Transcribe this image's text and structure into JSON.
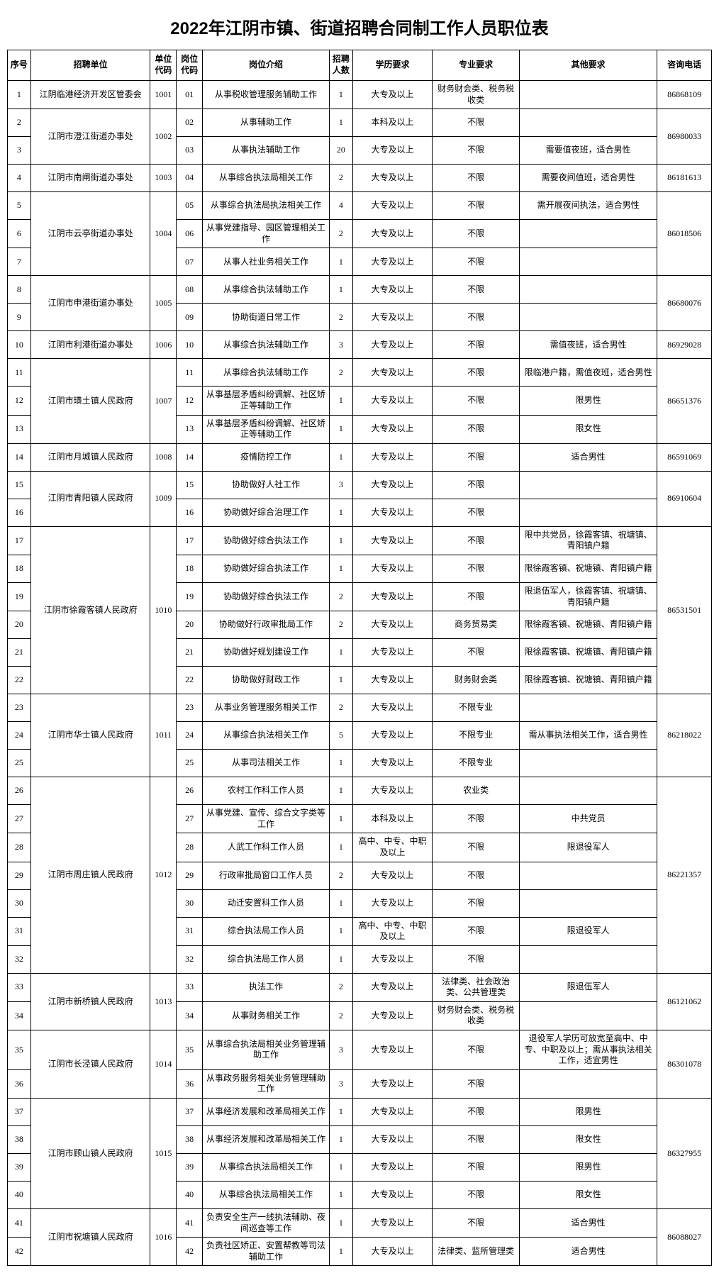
{
  "title": "2022年江阴市镇、街道招聘合同制工作人员职位表",
  "headers": [
    "序号",
    "招聘单位",
    "单位代码",
    "岗位代码",
    "岗位介绍",
    "招聘人数",
    "学历要求",
    "专业要求",
    "其他要求",
    "咨询电话"
  ],
  "units": [
    {
      "name": "江阴临港经济开发区管委会",
      "code": "1001",
      "phone": "86868109",
      "rows": [
        {
          "seq": "1",
          "pcode": "01",
          "desc": "从事税收管理服务辅助工作",
          "num": "1",
          "edu": "大专及以上",
          "major": "财务财会类、税务税收类",
          "other": ""
        }
      ]
    },
    {
      "name": "江阴市澄江街道办事处",
      "code": "1002",
      "phone": "86980033",
      "rows": [
        {
          "seq": "2",
          "pcode": "02",
          "desc": "从事辅助工作",
          "num": "1",
          "edu": "本科及以上",
          "major": "不限",
          "other": ""
        },
        {
          "seq": "3",
          "pcode": "03",
          "desc": "从事执法辅助工作",
          "num": "20",
          "edu": "大专及以上",
          "major": "不限",
          "other": "需要值夜班，适合男性"
        }
      ]
    },
    {
      "name": "江阴市南闸街道办事处",
      "code": "1003",
      "phone": "86181613",
      "rows": [
        {
          "seq": "4",
          "pcode": "04",
          "desc": "从事综合执法局相关工作",
          "num": "2",
          "edu": "大专及以上",
          "major": "不限",
          "other": "需要夜间值班，适合男性"
        }
      ]
    },
    {
      "name": "江阴市云亭街道办事处",
      "code": "1004",
      "phone": "86018506",
      "rows": [
        {
          "seq": "5",
          "pcode": "05",
          "desc": "从事综合执法局执法相关工作",
          "num": "4",
          "edu": "大专及以上",
          "major": "不限",
          "other": "需开展夜间执法，适合男性"
        },
        {
          "seq": "6",
          "pcode": "06",
          "desc": "从事党建指导、园区管理相关工作",
          "num": "2",
          "edu": "大专及以上",
          "major": "不限",
          "other": ""
        },
        {
          "seq": "7",
          "pcode": "07",
          "desc": "从事人社业务相关工作",
          "num": "1",
          "edu": "大专及以上",
          "major": "不限",
          "other": ""
        }
      ]
    },
    {
      "name": "江阴市申港街道办事处",
      "code": "1005",
      "phone": "86680076",
      "rows": [
        {
          "seq": "8",
          "pcode": "08",
          "desc": "从事综合执法辅助工作",
          "num": "1",
          "edu": "大专及以上",
          "major": "不限",
          "other": ""
        },
        {
          "seq": "9",
          "pcode": "09",
          "desc": "协助街道日常工作",
          "num": "2",
          "edu": "大专及以上",
          "major": "不限",
          "other": ""
        }
      ]
    },
    {
      "name": "江阴市利港街道办事处",
      "code": "1006",
      "phone": "86929028",
      "rows": [
        {
          "seq": "10",
          "pcode": "10",
          "desc": "从事综合执法辅助工作",
          "num": "3",
          "edu": "大专及以上",
          "major": "不限",
          "other": "需值夜班，适合男性"
        }
      ]
    },
    {
      "name": "江阴市璜土镇人民政府",
      "code": "1007",
      "phone": "86651376",
      "rows": [
        {
          "seq": "11",
          "pcode": "11",
          "desc": "从事综合执法辅助工作",
          "num": "2",
          "edu": "大专及以上",
          "major": "不限",
          "other": "限临港户籍，需值夜班，适合男性"
        },
        {
          "seq": "12",
          "pcode": "12",
          "desc": "从事基层矛盾纠纷调解、社区矫正等辅助工作",
          "num": "1",
          "edu": "大专及以上",
          "major": "不限",
          "other": "限男性"
        },
        {
          "seq": "13",
          "pcode": "13",
          "desc": "从事基层矛盾纠纷调解、社区矫正等辅助工作",
          "num": "1",
          "edu": "大专及以上",
          "major": "不限",
          "other": "限女性"
        }
      ]
    },
    {
      "name": "江阴市月城镇人民政府",
      "code": "1008",
      "phone": "86591069",
      "rows": [
        {
          "seq": "14",
          "pcode": "14",
          "desc": "疫情防控工作",
          "num": "1",
          "edu": "大专及以上",
          "major": "不限",
          "other": "适合男性"
        }
      ]
    },
    {
      "name": "江阴市青阳镇人民政府",
      "code": "1009",
      "phone": "86910604",
      "rows": [
        {
          "seq": "15",
          "pcode": "15",
          "desc": "协助做好人社工作",
          "num": "3",
          "edu": "大专及以上",
          "major": "不限",
          "other": ""
        },
        {
          "seq": "16",
          "pcode": "16",
          "desc": "协助做好综合治理工作",
          "num": "1",
          "edu": "大专及以上",
          "major": "不限",
          "other": ""
        }
      ]
    },
    {
      "name": "江阴市徐霞客镇人民政府",
      "code": "1010",
      "phone": "86531501",
      "rows": [
        {
          "seq": "17",
          "pcode": "17",
          "desc": "协助做好综合执法工作",
          "num": "1",
          "edu": "大专及以上",
          "major": "不限",
          "other": "限中共党员，徐霞客镇、祝塘镇、青阳镇户籍"
        },
        {
          "seq": "18",
          "pcode": "18",
          "desc": "协助做好综合执法工作",
          "num": "1",
          "edu": "大专及以上",
          "major": "不限",
          "other": "限徐霞客镇、祝塘镇、青阳镇户籍"
        },
        {
          "seq": "19",
          "pcode": "19",
          "desc": "协助做好综合执法工作",
          "num": "2",
          "edu": "大专及以上",
          "major": "不限",
          "other": "限退伍军人，徐霞客镇、祝塘镇、青阳镇户籍"
        },
        {
          "seq": "20",
          "pcode": "20",
          "desc": "协助做好行政审批局工作",
          "num": "2",
          "edu": "大专及以上",
          "major": "商务贸易类",
          "other": "限徐霞客镇、祝塘镇、青阳镇户籍"
        },
        {
          "seq": "21",
          "pcode": "21",
          "desc": "协助做好规划建设工作",
          "num": "1",
          "edu": "大专及以上",
          "major": "不限",
          "other": "限徐霞客镇、祝塘镇、青阳镇户籍"
        },
        {
          "seq": "22",
          "pcode": "22",
          "desc": "协助做好财政工作",
          "num": "1",
          "edu": "大专及以上",
          "major": "财务财会类",
          "other": "限徐霞客镇、祝塘镇、青阳镇户籍"
        }
      ]
    },
    {
      "name": "江阴市华士镇人民政府",
      "code": "1011",
      "phone": "86218022",
      "rows": [
        {
          "seq": "23",
          "pcode": "23",
          "desc": "从事业务管理服务相关工作",
          "num": "2",
          "edu": "大专及以上",
          "major": "不限专业",
          "other": ""
        },
        {
          "seq": "24",
          "pcode": "24",
          "desc": "从事综合执法相关工作",
          "num": "5",
          "edu": "大专及以上",
          "major": "不限专业",
          "other": "需从事执法相关工作，适合男性"
        },
        {
          "seq": "25",
          "pcode": "25",
          "desc": "从事司法相关工作",
          "num": "1",
          "edu": "大专及以上",
          "major": "不限专业",
          "other": ""
        }
      ]
    },
    {
      "name": "江阴市周庄镇人民政府",
      "code": "1012",
      "phone": "86221357",
      "rows": [
        {
          "seq": "26",
          "pcode": "26",
          "desc": "农村工作科工作人员",
          "num": "1",
          "edu": "大专及以上",
          "major": "农业类",
          "other": ""
        },
        {
          "seq": "27",
          "pcode": "27",
          "desc": "从事党建、宣传、综合文字类等工作",
          "num": "1",
          "edu": "本科及以上",
          "major": "不限",
          "other": "中共党员"
        },
        {
          "seq": "28",
          "pcode": "28",
          "desc": "人武工作科工作人员",
          "num": "1",
          "edu": "高中、中专、中职及以上",
          "major": "不限",
          "other": "限退役军人"
        },
        {
          "seq": "29",
          "pcode": "29",
          "desc": "行政审批局窗口工作人员",
          "num": "2",
          "edu": "大专及以上",
          "major": "不限",
          "other": ""
        },
        {
          "seq": "30",
          "pcode": "30",
          "desc": "动迁安置科工作人员",
          "num": "1",
          "edu": "大专及以上",
          "major": "不限",
          "other": ""
        },
        {
          "seq": "31",
          "pcode": "31",
          "desc": "综合执法局工作人员",
          "num": "1",
          "edu": "高中、中专、中职及以上",
          "major": "不限",
          "other": "限退役军人"
        },
        {
          "seq": "32",
          "pcode": "32",
          "desc": "综合执法局工作人员",
          "num": "1",
          "edu": "大专及以上",
          "major": "不限",
          "other": ""
        }
      ]
    },
    {
      "name": "江阴市新桥镇人民政府",
      "code": "1013",
      "phone": "86121062",
      "rows": [
        {
          "seq": "33",
          "pcode": "33",
          "desc": "执法工作",
          "num": "2",
          "edu": "大专及以上",
          "major": "法律类、社会政治类、公共管理类",
          "other": "限退伍军人"
        },
        {
          "seq": "34",
          "pcode": "34",
          "desc": "从事财务相关工作",
          "num": "2",
          "edu": "大专及以上",
          "major": "财务财会类、税务税收类",
          "other": ""
        }
      ]
    },
    {
      "name": "江阴市长泾镇人民政府",
      "code": "1014",
      "phone": "86301078",
      "rows": [
        {
          "seq": "35",
          "pcode": "35",
          "desc": "从事综合执法局相关业务管理辅助工作",
          "num": "3",
          "edu": "大专及以上",
          "major": "不限",
          "other": "退役军人学历可放宽至高中、中专、中职及以上；需从事执法相关工作，适宜男性"
        },
        {
          "seq": "36",
          "pcode": "36",
          "desc": "从事政务服务相关业务管理辅助工作",
          "num": "3",
          "edu": "大专及以上",
          "major": "不限",
          "other": ""
        }
      ]
    },
    {
      "name": "江阴市顾山镇人民政府",
      "code": "1015",
      "phone": "86327955",
      "rows": [
        {
          "seq": "37",
          "pcode": "37",
          "desc": "从事经济发展和改革局相关工作",
          "num": "1",
          "edu": "大专及以上",
          "major": "不限",
          "other": "限男性"
        },
        {
          "seq": "38",
          "pcode": "38",
          "desc": "从事经济发展和改革局相关工作",
          "num": "1",
          "edu": "大专及以上",
          "major": "不限",
          "other": "限女性"
        },
        {
          "seq": "39",
          "pcode": "39",
          "desc": "从事综合执法局相关工作",
          "num": "1",
          "edu": "大专及以上",
          "major": "不限",
          "other": "限男性"
        },
        {
          "seq": "40",
          "pcode": "40",
          "desc": "从事综合执法局相关工作",
          "num": "1",
          "edu": "大专及以上",
          "major": "不限",
          "other": "限女性"
        }
      ]
    },
    {
      "name": "江阴市祝塘镇人民政府",
      "code": "1016",
      "phone": "86088027",
      "rows": [
        {
          "seq": "41",
          "pcode": "41",
          "desc": "负责安全生产一线执法辅助、夜间巡查等工作",
          "num": "1",
          "edu": "大专及以上",
          "major": "不限",
          "other": "适合男性"
        },
        {
          "seq": "42",
          "pcode": "42",
          "desc": "负责社区矫正、安置帮教等司法辅助工作",
          "num": "1",
          "edu": "大专及以上",
          "major": "法律类、监所管理类",
          "other": "适合男性"
        }
      ]
    }
  ]
}
